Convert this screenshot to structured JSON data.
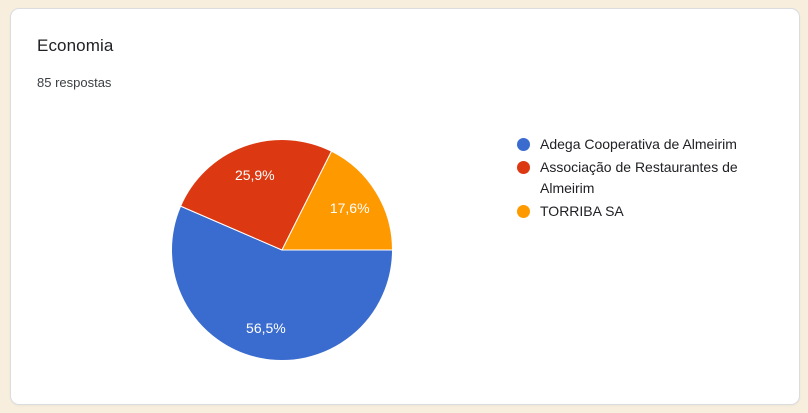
{
  "card": {
    "title": "Economia",
    "subtitle": "85 respostas"
  },
  "colors": {
    "page_bg": "#f7eedd",
    "card_bg": "#ffffff",
    "card_border": "#dadce0",
    "title_text": "#202124",
    "subtitle_text": "#3c4043",
    "legend_text": "#202124",
    "slice_label_text": "#ffffff",
    "slice_separator": "#ffffff"
  },
  "chart_data": {
    "type": "pie",
    "title": "Economia",
    "total_label": "85 respostas",
    "legend_position": "right",
    "start_angle_deg": 0,
    "direction": "clockwise",
    "label_radius_ratio": 0.72,
    "slices": [
      {
        "label": "Adega Cooperativa de Almeirim",
        "pct": 56.5,
        "pct_label": "56,5%",
        "color": "#3a6bce"
      },
      {
        "label": "Associação de Restaurantes de Almeirim",
        "pct": 25.9,
        "pct_label": "25,9%",
        "color": "#dc3912"
      },
      {
        "label": "TORRIBA SA",
        "pct": 17.6,
        "pct_label": "17,6%",
        "color": "#ff9900"
      }
    ]
  }
}
